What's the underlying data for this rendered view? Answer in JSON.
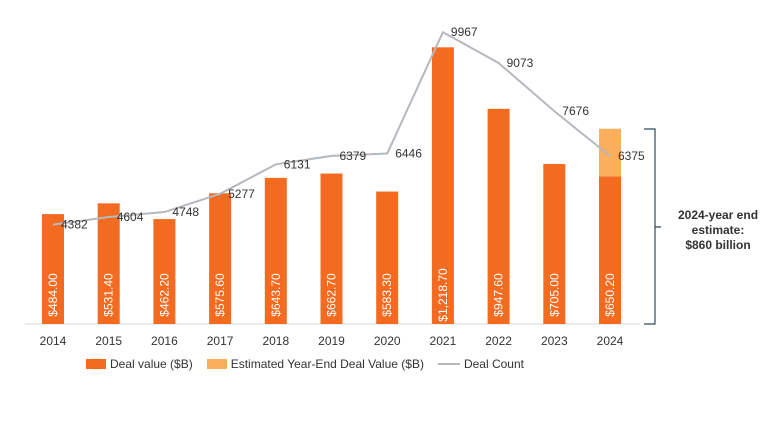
{
  "chart_data": {
    "type": "bar",
    "categories": [
      "2014",
      "2015",
      "2016",
      "2017",
      "2018",
      "2019",
      "2020",
      "2021",
      "2022",
      "2023",
      "2024"
    ],
    "series": [
      {
        "name": "Deal value ($B)",
        "values": [
          484.0,
          531.4,
          462.2,
          575.6,
          643.7,
          662.7,
          583.3,
          1218.7,
          947.6,
          705.0,
          650.2
        ],
        "labels": [
          "$484.00",
          "$531.40",
          "$462.20",
          "$575.60",
          "$643.70",
          "$662.70",
          "$583.30",
          "$1,218.70",
          "$947.60",
          "$705.00",
          "$650.20"
        ],
        "color": "#F26B21"
      },
      {
        "name": "Estimated Year-End Deal Value ($B)",
        "values": [
          null,
          null,
          null,
          null,
          null,
          null,
          null,
          null,
          null,
          null,
          209.8
        ],
        "color": "#FBAE5C"
      },
      {
        "name": "Deal Count",
        "type": "line",
        "values": [
          4382,
          4604,
          4748,
          5277,
          6131,
          6379,
          6446,
          9967,
          9073,
          7676,
          6375
        ],
        "color": "#B4B9BE"
      }
    ],
    "bar_axis_range": [
      0,
      1220
    ],
    "count_axis_range": [
      1500,
      10900
    ],
    "grid": false,
    "legend_position": "bottom",
    "annotation_lines": [
      "2024-year end",
      "estimate:",
      "$860 billion"
    ]
  }
}
